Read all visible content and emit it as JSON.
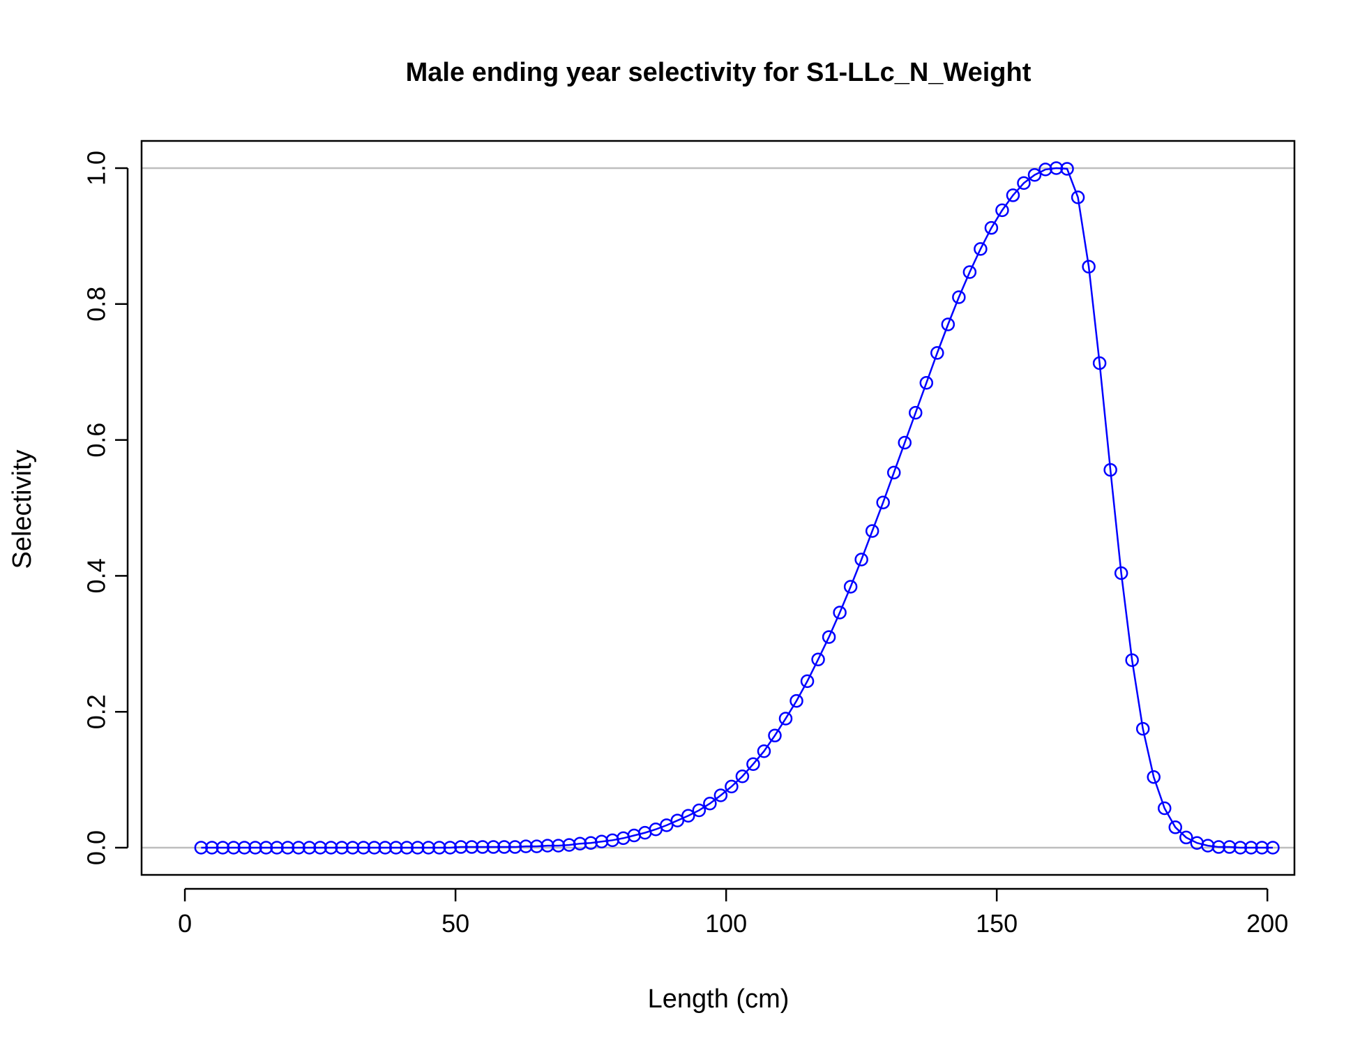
{
  "chart_data": {
    "type": "line",
    "title": "Male ending year selectivity for S1-LLc_N_Weight",
    "xlabel": "Length (cm)",
    "ylabel": "Selectivity",
    "xlim": [
      -8,
      205
    ],
    "ylim": [
      -0.04,
      1.04
    ],
    "xticks": [
      0,
      50,
      100,
      150,
      200
    ],
    "yticks": [
      0.0,
      0.2,
      0.4,
      0.6,
      0.8,
      1.0
    ],
    "xtick_labels": [
      "0",
      "50",
      "100",
      "150",
      "200"
    ],
    "ytick_labels": [
      "0.0",
      "0.2",
      "0.4",
      "0.6",
      "0.8",
      "1.0"
    ],
    "reference_lines_y": [
      0,
      1
    ],
    "grid": false,
    "series": [
      {
        "color": "#0000ff",
        "marker": "open-circle",
        "x": [
          3,
          5,
          7,
          9,
          11,
          13,
          15,
          17,
          19,
          21,
          23,
          25,
          27,
          29,
          31,
          33,
          35,
          37,
          39,
          41,
          43,
          45,
          47,
          49,
          51,
          53,
          55,
          57,
          59,
          61,
          63,
          65,
          67,
          69,
          71,
          73,
          75,
          77,
          79,
          81,
          83,
          85,
          87,
          89,
          91,
          93,
          95,
          97,
          99,
          101,
          103,
          105,
          107,
          109,
          111,
          113,
          115,
          117,
          119,
          121,
          123,
          125,
          127,
          129,
          131,
          133,
          135,
          137,
          139,
          141,
          143,
          145,
          147,
          149,
          151,
          153,
          155,
          157,
          159,
          161,
          163,
          165,
          167,
          169,
          171,
          173,
          175,
          177,
          179,
          181,
          183,
          185,
          187,
          189,
          191,
          193,
          195,
          197,
          199,
          201
        ],
        "y": [
          0,
          0,
          0,
          0,
          0,
          0,
          0,
          0,
          0,
          0,
          0,
          0,
          0,
          0,
          0,
          0,
          0,
          0,
          0,
          0,
          0,
          0,
          0,
          0,
          0.001,
          0.001,
          0.001,
          0.001,
          0.001,
          0.001,
          0.002,
          0.002,
          0.003,
          0.003,
          0.004,
          0.006,
          0.007,
          0.009,
          0.011,
          0.014,
          0.018,
          0.022,
          0.027,
          0.033,
          0.04,
          0.047,
          0.055,
          0.065,
          0.077,
          0.09,
          0.105,
          0.123,
          0.142,
          0.165,
          0.19,
          0.216,
          0.245,
          0.277,
          0.31,
          0.346,
          0.384,
          0.424,
          0.466,
          0.508,
          0.552,
          0.596,
          0.64,
          0.684,
          0.728,
          0.77,
          0.81,
          0.847,
          0.881,
          0.912,
          0.938,
          0.96,
          0.978,
          0.99,
          0.998,
          1.0,
          0.999,
          0.957,
          0.855,
          0.713,
          0.556,
          0.404,
          0.276,
          0.175,
          0.104,
          0.058,
          0.03,
          0.015,
          0.007,
          0.003,
          0.001,
          0.001,
          0,
          0,
          0,
          0
        ]
      }
    ]
  }
}
